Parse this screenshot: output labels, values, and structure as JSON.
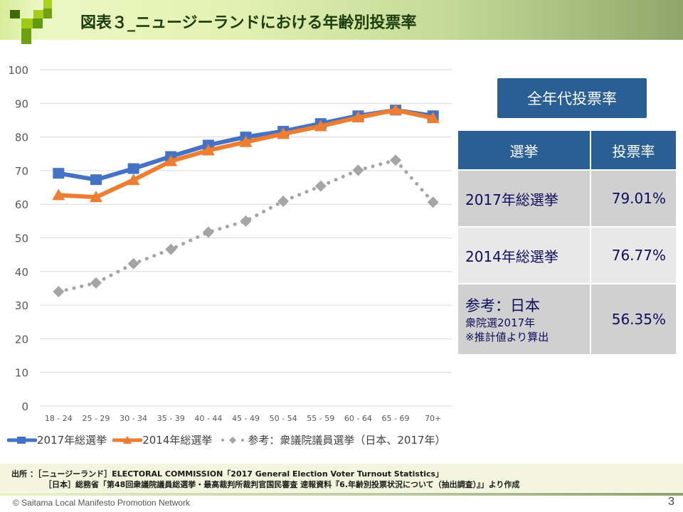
{
  "header": {
    "title": "図表３_ニュージーランドにおける年齢別投票率",
    "accent_colors": [
      "#336600",
      "#669900",
      "#99cc00",
      "#a8d400"
    ]
  },
  "chart_data": {
    "type": "line",
    "title": "",
    "xlabel": "",
    "ylabel": "",
    "ylim": [
      0,
      100
    ],
    "yticks": [
      0,
      10,
      20,
      30,
      40,
      50,
      60,
      70,
      80,
      90,
      100
    ],
    "grid": true,
    "legend_position": "bottom",
    "categories": [
      "18 - 24",
      "25 - 29",
      "30 - 34",
      "35 - 39",
      "40 - 44",
      "45 - 49",
      "50 - 54",
      "55 - 59",
      "60 - 64",
      "65 - 69",
      "70+"
    ],
    "series": [
      {
        "name": "2017年総選挙",
        "color": "#4472c4",
        "marker": "square",
        "style": "solid",
        "values": [
          69.2,
          67.3,
          70.6,
          74.2,
          77.6,
          80.0,
          81.7,
          84.0,
          86.3,
          88.0,
          86.3
        ]
      },
      {
        "name": "2014年総選挙",
        "color": "#ed7d31",
        "marker": "triangle",
        "style": "solid",
        "values": [
          62.7,
          62.1,
          67.2,
          72.8,
          76.0,
          78.5,
          80.9,
          83.2,
          85.8,
          88.0,
          85.6
        ]
      },
      {
        "name": "参考：衆議院議員選挙（日本、2017年）",
        "color": "#a5a5a5",
        "marker": "diamond",
        "style": "dotted",
        "values": [
          34.0,
          36.6,
          42.3,
          46.6,
          51.7,
          55.0,
          60.9,
          65.4,
          70.1,
          73.1,
          60.6
        ]
      }
    ]
  },
  "summary": {
    "title": "全年代投票率",
    "headers": [
      "選挙",
      "投票率"
    ],
    "rows": [
      {
        "label": "2017年総選挙",
        "value": "79.01%"
      },
      {
        "label": "2014年総選挙",
        "value": "76.77%"
      },
      {
        "label_main": "参考：日本",
        "label_sub1": "衆院選2017年",
        "label_sub2": "※推計値より算出",
        "value": "56.35%"
      }
    ]
  },
  "source": {
    "line1": "出所 ：［ニュージーランド］ELECTORAL COMMISSION「2017 General Election Voter Turnout Statistics」",
    "line2": "［日本］総務省「第48回衆議院議員総選挙・最高裁判所裁判官国民審査 速報資料『6.年齢別投票状況について（抽出調査）』」より作成"
  },
  "footer": {
    "copyright": "© Saitama Local Manifesto Promotion Network",
    "page_number": "3"
  }
}
